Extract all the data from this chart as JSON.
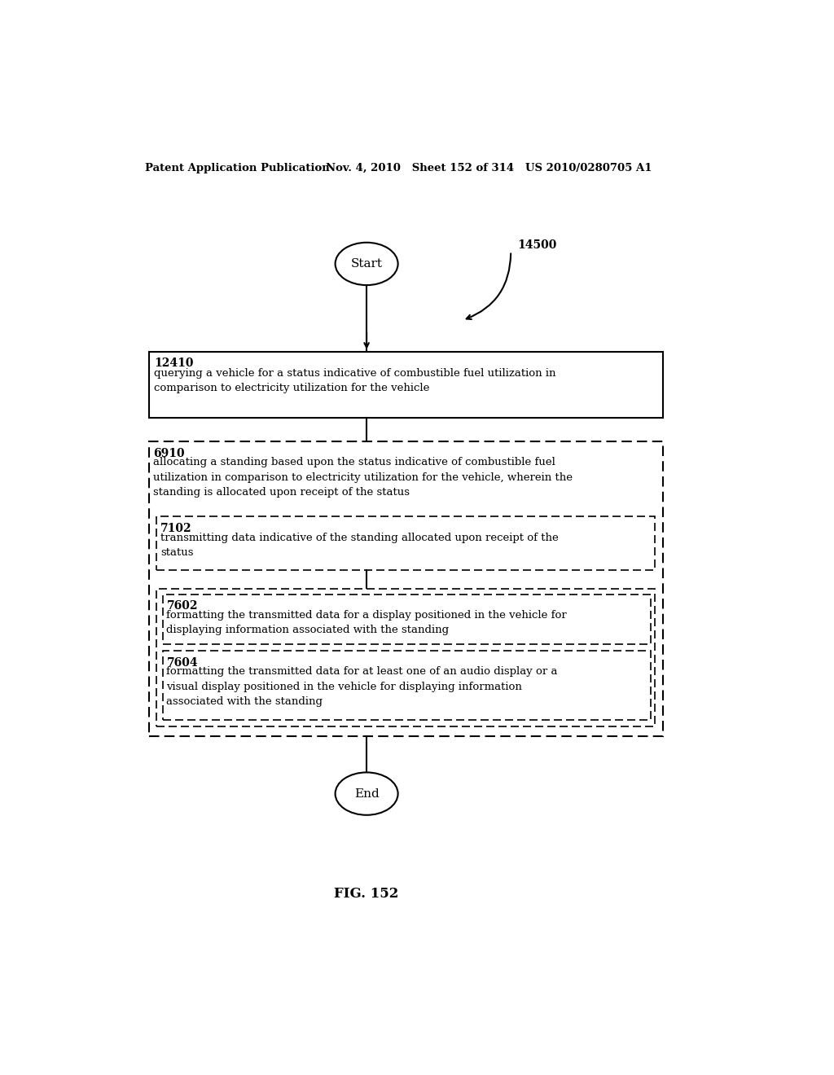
{
  "header_left": "Patent Application Publication",
  "header_right": "Nov. 4, 2010   Sheet 152 of 314   US 2010/0280705 A1",
  "figure_label": "FIG. 152",
  "label_14500": "14500",
  "start_label": "Start",
  "end_label": "End",
  "box1_id": "12410",
  "box1_text": "querying a vehicle for a status indicative of combustible fuel utilization in\ncomparison to electricity utilization for the vehicle",
  "outer_box_id": "6910",
  "outer_box_text": "allocating a standing based upon the status indicative of combustible fuel\nutilization in comparison to electricity utilization for the vehicle, wherein the\nstanding is allocated upon receipt of the status",
  "inner_box1_id": "7102",
  "inner_box1_text": "transmitting data indicative of the standing allocated upon receipt of the\nstatus",
  "inner_box2_id": "7602",
  "inner_box2_text": "formatting the transmitted data for a display positioned in the vehicle for\ndisplaying information associated with the standing",
  "inner_box3_id": "7604",
  "inner_box3_text": "formatting the transmitted data for at least one of an audio display or a\nvisual display positioned in the vehicle for displaying information\nassociated with the standing",
  "bg_color": "#ffffff",
  "text_color": "#000000"
}
